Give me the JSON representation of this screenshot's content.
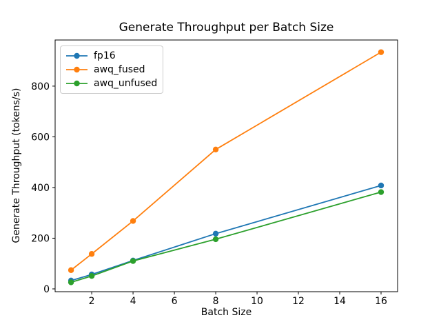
{
  "chart_data": {
    "type": "line",
    "title": "Generate Throughput per Batch Size",
    "xlabel": "Batch Size",
    "ylabel": "Generate Throughput (tokens/s)",
    "x": [
      1,
      2,
      4,
      8,
      16
    ],
    "series": [
      {
        "name": "fp16",
        "color": "#1f77b4",
        "values": [
          33,
          57,
          112,
          218,
          408
        ]
      },
      {
        "name": "awq_fused",
        "color": "#ff7f0e",
        "values": [
          74,
          138,
          268,
          550,
          934
        ]
      },
      {
        "name": "awq_unfused",
        "color": "#2ca02c",
        "values": [
          26,
          51,
          110,
          196,
          382
        ]
      }
    ],
    "xticks": [
      2,
      4,
      6,
      8,
      10,
      12,
      14,
      16
    ],
    "yticks": [
      0,
      200,
      400,
      600,
      800
    ],
    "xlim": [
      0.23,
      16.8
    ],
    "ylim": [
      -11,
      982
    ],
    "grid": false,
    "marker": "circle",
    "legend": {
      "position": "upper left"
    },
    "axis_color": "#000000",
    "background_color": "#ffffff"
  }
}
